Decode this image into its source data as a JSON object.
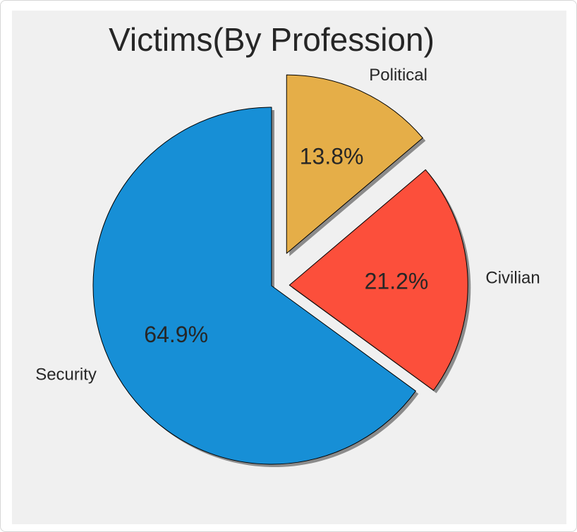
{
  "chart_data": {
    "type": "pie",
    "title": "Victims(By Profession)",
    "slices": [
      {
        "name": "Security",
        "value": 64.9,
        "pct_label": "64.9%",
        "color": "#178fd6",
        "explode": 0.0
      },
      {
        "name": "Civilian",
        "value": 21.2,
        "pct_label": "21.2%",
        "color": "#fc4f3b",
        "explode": 0.1
      },
      {
        "name": "Political",
        "value": 13.8,
        "pct_label": "13.8%",
        "color": "#e5ae48",
        "explode": 0.2
      }
    ],
    "start_angle": 90,
    "direction": "counterclockwise",
    "shadow": true,
    "background_color": "#f0f0f0"
  }
}
